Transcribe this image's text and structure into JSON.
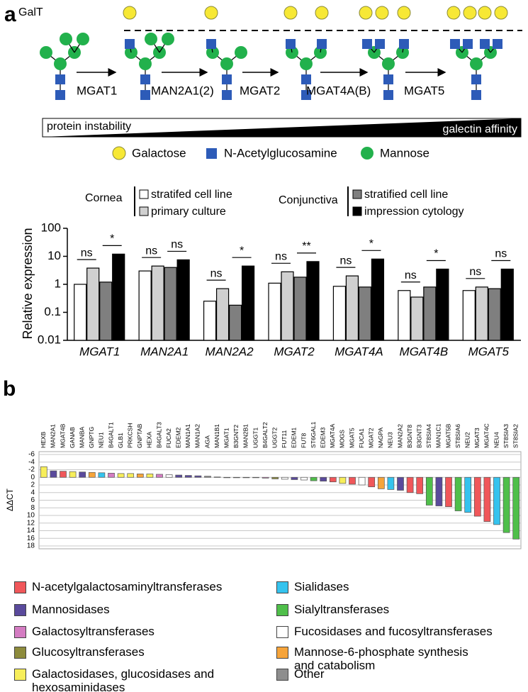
{
  "panel_labels": [
    "a",
    "b"
  ],
  "diagram": {
    "galt_label": "GalT",
    "enzymes": [
      "MGAT1",
      "MAN2A1(2)",
      "MGAT2",
      "MGAT4A(B)",
      "MGAT5"
    ],
    "gradient_left": "protein instability",
    "gradient_right": "galectin affinity",
    "legend": [
      "Galactose",
      "N-Acetylglucosamine",
      "Mannose"
    ]
  },
  "chart_data": [
    {
      "type": "grouped-bar",
      "ylabel": "Relative expression",
      "log": true,
      "ylim": [
        0.01,
        100
      ],
      "yticks": [
        0.01,
        0.1,
        1,
        10,
        100
      ],
      "legend_groups": [
        "Cornea",
        "Conjunctiva"
      ],
      "categories": [
        "MGAT1",
        "MAN2A1",
        "MAN2A2",
        "MGAT2",
        "MGAT4A",
        "MGAT4B",
        "MGAT5"
      ],
      "series": [
        {
          "name": "stratifed cell line",
          "color": "#ffffff",
          "values": [
            1.0,
            3.0,
            0.25,
            1.1,
            0.85,
            0.6,
            0.6
          ]
        },
        {
          "name": "primary culture",
          "color": "#d0d0d0",
          "values": [
            3.8,
            4.5,
            0.7,
            2.8,
            2.0,
            0.35,
            0.8
          ]
        },
        {
          "name": "stratified cell line",
          "color": "#7f7f7f",
          "values": [
            1.2,
            4.0,
            0.18,
            1.8,
            0.8,
            0.8,
            0.7
          ]
        },
        {
          "name": "impression cytology",
          "color": "#000000",
          "values": [
            12,
            7.5,
            4.5,
            6.5,
            8,
            3.5,
            3.5
          ]
        }
      ],
      "significance": [
        [
          "ns",
          "*"
        ],
        [
          "ns",
          "ns"
        ],
        [
          "ns",
          "*"
        ],
        [
          "ns",
          "**"
        ],
        [
          "ns",
          "*"
        ],
        [
          "ns",
          "*"
        ],
        [
          "ns",
          "ns"
        ]
      ]
    },
    {
      "type": "bar",
      "ylabel": "ΔΔCT",
      "inverted": true,
      "grid": true,
      "ylim": [
        -6,
        18
      ],
      "yticks": [
        -6,
        -4,
        -2,
        0,
        2,
        4,
        6,
        8,
        10,
        12,
        14,
        16,
        18
      ],
      "categories": [
        "HEXB",
        "MAN2A1",
        "MGAT4B",
        "GANAB",
        "MANBA",
        "GNPTG",
        "NEU1",
        "B4GALT1",
        "GLB1",
        "PRKCSH",
        "GNPTAB",
        "HEXA",
        "B4GALT3",
        "FUCA2",
        "EDEM2",
        "MAN1A1",
        "MAN1A2",
        "AGA",
        "MAN1B1",
        "MGAT1",
        "B3GNT2",
        "MAN2B1",
        "UGGT1",
        "B4GALT2",
        "UGGT2",
        "FUT11",
        "EDEM1",
        "FUT8",
        "ST6GAL1",
        "EDEM3",
        "MGAT4A",
        "MOGS",
        "MGAT5",
        "FUCA1",
        "MGAT2",
        "NAGPA",
        "NEU3",
        "MAN2A2",
        "B3GNT8",
        "B3GNT3",
        "ST8SIA4",
        "MAN1C1",
        "MGAT5B",
        "ST8SIA6",
        "NEU2",
        "MGAT3",
        "MGAT4C",
        "NEU4",
        "ST8SIA3",
        "ST8SIA2"
      ],
      "values": [
        -2.8,
        -1.7,
        -1.6,
        -1.5,
        -1.4,
        -1.3,
        -1.2,
        -1.1,
        -1.0,
        -1.0,
        -0.9,
        -0.9,
        -0.8,
        -0.7,
        -0.6,
        -0.5,
        -0.4,
        -0.3,
        -0.1,
        0.0,
        0.05,
        0.1,
        0.1,
        0.2,
        0.4,
        0.5,
        0.6,
        0.7,
        0.9,
        1.0,
        1.2,
        1.6,
        1.8,
        2.0,
        2.5,
        3.0,
        3.2,
        3.4,
        4.0,
        4.3,
        7.3,
        7.5,
        7.7,
        8.8,
        9.2,
        10.2,
        11.6,
        12.4,
        14.5,
        16.2
      ],
      "colors": [
        "#f7ee5a",
        "#5a4a9c",
        "#f0575a",
        "#f7ee5a",
        "#5a4a9c",
        "#f6a43a",
        "#35c3ee",
        "#d47cc2",
        "#f7ee5a",
        "#f7ee5a",
        "#f6a43a",
        "#f7ee5a",
        "#d47cc2",
        "#ffffff",
        "#5a4a9c",
        "#5a4a9c",
        "#5a4a9c",
        "#8e8e8e",
        "#5a4a9c",
        "#f0575a",
        "#f0575a",
        "#5a4a9c",
        "#8d8b3c",
        "#d47cc2",
        "#8d8b3c",
        "#ffffff",
        "#5a4a9c",
        "#ffffff",
        "#4fbf4a",
        "#5a4a9c",
        "#f0575a",
        "#f7ee5a",
        "#f0575a",
        "#ffffff",
        "#f0575a",
        "#f6a43a",
        "#35c3ee",
        "#5a4a9c",
        "#f0575a",
        "#f0575a",
        "#4fbf4a",
        "#5a4a9c",
        "#f0575a",
        "#4fbf4a",
        "#35c3ee",
        "#f0575a",
        "#f0575a",
        "#35c3ee",
        "#4fbf4a",
        "#4fbf4a"
      ],
      "legend": [
        {
          "name": "N-acetylgalactosaminyltransferases",
          "color": "#f0575a"
        },
        {
          "name": "Mannosidases",
          "color": "#5a4a9c"
        },
        {
          "name": "Galactosyltransferases",
          "color": "#d47cc2"
        },
        {
          "name": "Glucosyltransferases",
          "color": "#8d8b3c"
        },
        {
          "name": "Galactosidases, glucosidases and hexosaminidases",
          "color": "#f7ee5a"
        },
        {
          "name": "Sialidases",
          "color": "#35c3ee"
        },
        {
          "name": "Sialyltransferases",
          "color": "#4fbf4a"
        },
        {
          "name": "Fucosidases and fucosyltransferases",
          "color": "#ffffff"
        },
        {
          "name": "Mannose-6-phosphate synthesis and catabolism",
          "color": "#f6a43a"
        },
        {
          "name": "Other",
          "color": "#8e8e8e"
        }
      ]
    }
  ]
}
